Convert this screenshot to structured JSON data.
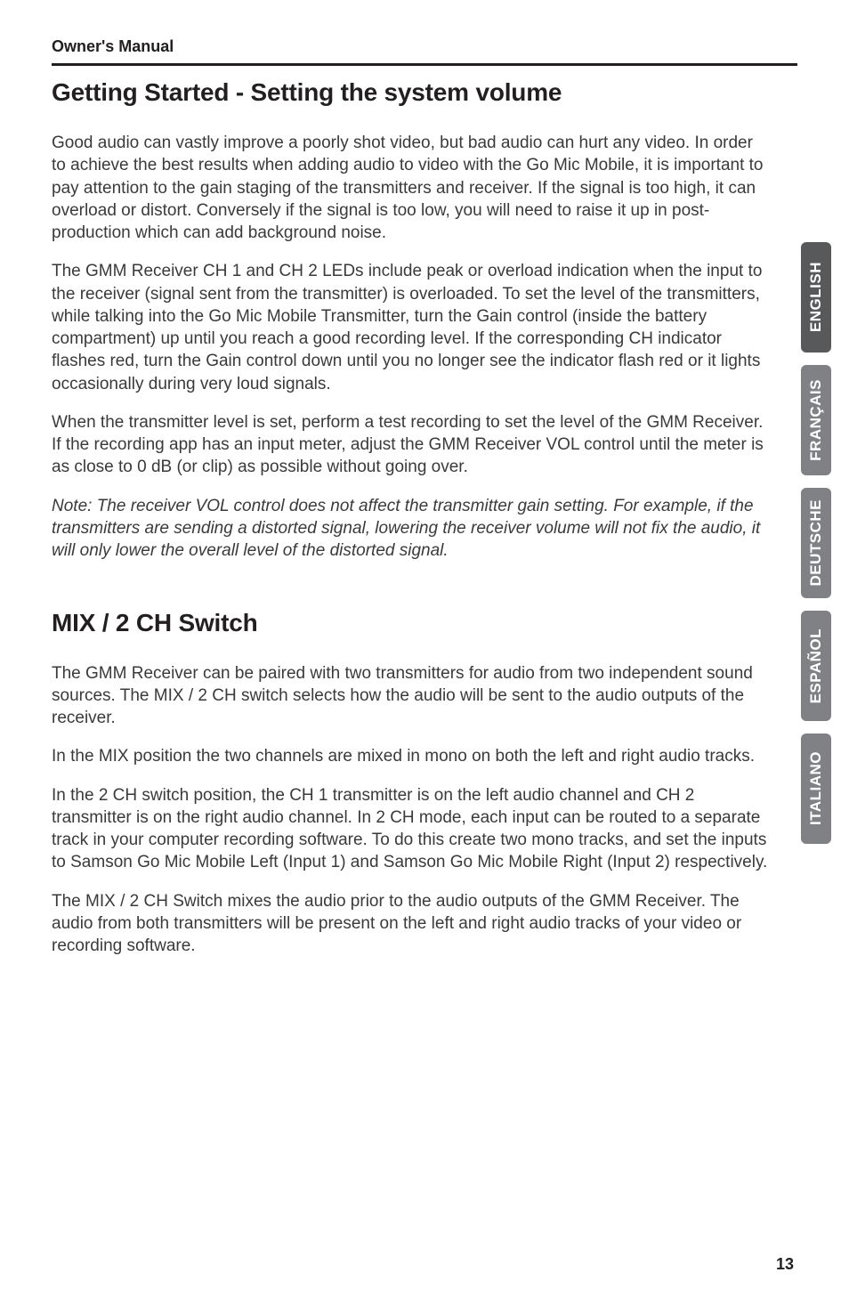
{
  "header": {
    "label": "Owner's Manual"
  },
  "sections": {
    "s1": {
      "title": "Getting Started - Setting the system volume",
      "p1": "Good audio can vastly improve a poorly shot video, but bad audio can hurt any video. In order to achieve the best results when adding audio to video with the Go Mic Mobile, it is important to pay attention to the gain staging of the transmitters and receiver. If the signal is too high, it can overload or distort. Conversely if the signal is too low, you will need to raise it up in post-production which can add background noise.",
      "p2": "The GMM Receiver CH 1 and CH 2 LEDs include peak or overload indication when the input to the receiver (signal sent from the transmitter) is overloaded. To set the level of the transmitters, while talking into the Go Mic Mobile Transmitter, turn the Gain control (inside the battery compartment) up until you reach a good recording level. If the corresponding CH indicator flashes red, turn the Gain control down until you no longer see the indicator flash red or it lights occasionally during very loud signals.",
      "p3": "When the transmitter level is set, perform a test recording to set the level of the GMM Receiver. If the recording app has an input meter, adjust the GMM Receiver VOL control until the meter is as close to 0 dB (or clip) as possible without going over.",
      "note": "Note: The receiver VOL control does not affect the transmitter gain setting. For example, if the transmitters are sending a distorted signal, lowering the receiver volume will not fix the audio, it will only lower the overall level of the distorted signal."
    },
    "s2": {
      "title": "MIX / 2 CH Switch",
      "p1": "The GMM Receiver can be paired with two transmitters for audio from two independent sound sources. The MIX / 2 CH switch selects how the audio will be sent to the audio outputs of the receiver.",
      "p2": "In the MIX position the two channels are mixed in mono on both the left and right audio tracks.",
      "p3": "In the 2 CH switch position, the CH 1 transmitter is on the left audio channel and CH 2 transmitter is on the right audio channel. In 2 CH mode, each input can be routed to a separate track in your computer recording software. To do this create two mono tracks, and set the inputs to Samson Go Mic Mobile Left (Input 1) and Samson Go Mic Mobile Right (Input 2) respectively.",
      "p4": "The MIX / 2 CH Switch mixes the audio prior to the audio outputs of the GMM Receiver. The audio from both transmitters will be present on the left and right audio tracks of your video or recording software."
    }
  },
  "lang_tabs": [
    {
      "label": "ENGLISH",
      "bg": "#58595b"
    },
    {
      "label": "FRANÇAIS",
      "bg": "#808184"
    },
    {
      "label": "DEUTSCHE",
      "bg": "#808184"
    },
    {
      "label": "ESPAÑOL",
      "bg": "#808184"
    },
    {
      "label": "ITALIANO",
      "bg": "#808184"
    }
  ],
  "page_number": "13"
}
